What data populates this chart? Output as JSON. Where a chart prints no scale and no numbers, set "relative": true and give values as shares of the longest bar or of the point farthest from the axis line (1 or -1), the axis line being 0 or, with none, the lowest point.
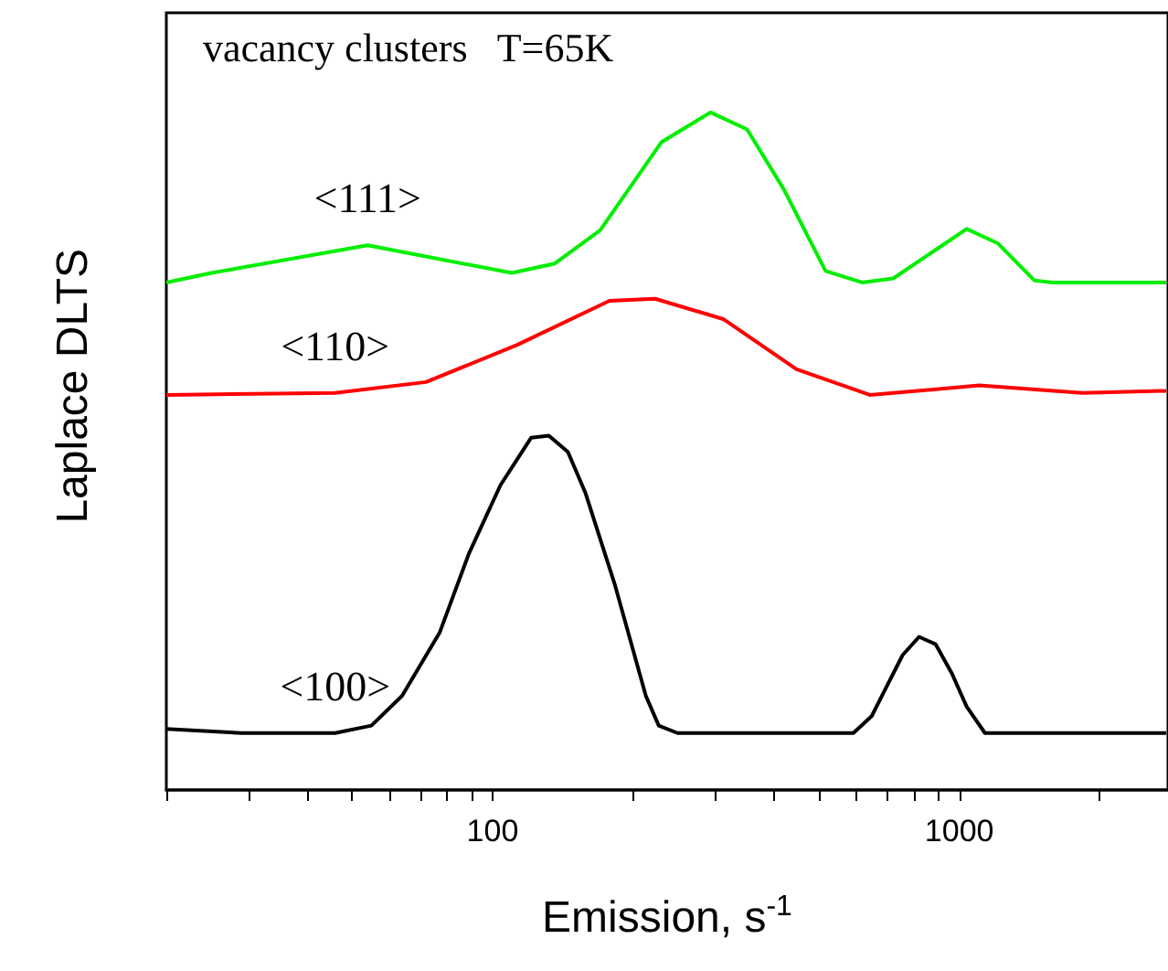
{
  "chart_data": {
    "type": "line",
    "title": "vacancy clusters   T=65K",
    "xlabel": "Emission, s$^{-1}$",
    "ylabel": "Laplace DLTS",
    "relative": true,
    "log": "x",
    "grid": false,
    "legend": false,
    "marker": "none",
    "line_style": "solid",
    "xlim": [
      20,
      2800
    ],
    "xticks": [
      {
        "value": 20,
        "label": null
      },
      {
        "value": 30,
        "label": null
      },
      {
        "value": 40,
        "label": null
      },
      {
        "value": 50,
        "label": null
      },
      {
        "value": 60,
        "label": null
      },
      {
        "value": 70,
        "label": null
      },
      {
        "value": 80,
        "label": null
      },
      {
        "value": 90,
        "label": null
      },
      100,
      {
        "value": 200,
        "label": null
      },
      {
        "value": 300,
        "label": null
      },
      {
        "value": 400,
        "label": null
      },
      {
        "value": 500,
        "label": null
      },
      {
        "value": 600,
        "label": null
      },
      {
        "value": 700,
        "label": null
      },
      {
        "value": 800,
        "label": null
      },
      {
        "value": 900,
        "label": null
      },
      1000,
      {
        "value": 2000,
        "label": null
      }
    ],
    "series": [
      {
        "name": "<111>",
        "color": "#00ee00",
        "x": [
          20,
          25,
          54,
          110,
          136,
          170,
          230,
          293,
          351,
          421,
          517,
          619,
          722,
          1037,
          1208,
          1448,
          1585,
          2775
        ],
        "values": [
          0.749,
          0.763,
          0.804,
          0.763,
          0.777,
          0.826,
          0.956,
          1.0,
          0.975,
          0.886,
          0.766,
          0.749,
          0.755,
          0.828,
          0.807,
          0.752,
          0.749,
          0.749
        ]
      },
      {
        "name": "<110>",
        "color": "#ff0000",
        "x": [
          20,
          46,
          72,
          113,
          178,
          223,
          312,
          448,
          643,
          1104,
          1832,
          2775
        ],
        "values": [
          0.583,
          0.586,
          0.602,
          0.657,
          0.722,
          0.725,
          0.695,
          0.621,
          0.583,
          0.597,
          0.586,
          0.589
        ]
      },
      {
        "name": "<100>",
        "color": "#000000",
        "x": [
          20,
          29,
          46,
          55,
          64,
          77,
          89,
          104,
          121,
          132,
          145,
          158,
          183,
          213,
          227,
          249,
          593,
          649,
          756,
          820,
          890,
          964,
          1037,
          1135,
          2775
        ],
        "values": [
          0.09,
          0.084,
          0.084,
          0.095,
          0.139,
          0.232,
          0.349,
          0.45,
          0.52,
          0.523,
          0.499,
          0.439,
          0.302,
          0.139,
          0.095,
          0.084,
          0.084,
          0.109,
          0.199,
          0.226,
          0.215,
          0.172,
          0.123,
          0.084,
          0.084
        ]
      }
    ]
  }
}
